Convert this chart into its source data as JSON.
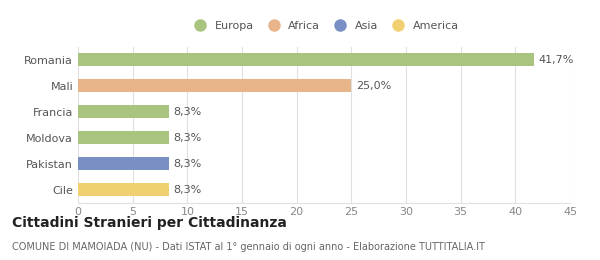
{
  "categories": [
    "Romania",
    "Mali",
    "Francia",
    "Moldova",
    "Pakistan",
    "Cile"
  ],
  "values": [
    41.7,
    25.0,
    8.3,
    8.3,
    8.3,
    8.3
  ],
  "bar_colors": [
    "#a8c47e",
    "#e8b48a",
    "#a8c47e",
    "#a8c47e",
    "#7a8fc4",
    "#f0d070"
  ],
  "labels": [
    "41,7%",
    "25,0%",
    "8,3%",
    "8,3%",
    "8,3%",
    "8,3%"
  ],
  "legend_entries": [
    {
      "label": "Europa",
      "color": "#a8c47e"
    },
    {
      "label": "Africa",
      "color": "#e8b48a"
    },
    {
      "label": "Asia",
      "color": "#7a8fc4"
    },
    {
      "label": "America",
      "color": "#f0d070"
    }
  ],
  "xlim": [
    0,
    45
  ],
  "xticks": [
    0,
    5,
    10,
    15,
    20,
    25,
    30,
    35,
    40,
    45
  ],
  "title": "Cittadini Stranieri per Cittadinanza",
  "subtitle": "COMUNE DI MAMOIADA (NU) - Dati ISTAT al 1° gennaio di ogni anno - Elaborazione TUTTITALIA.IT",
  "background_color": "#ffffff",
  "bar_height": 0.5,
  "label_fontsize": 8,
  "tick_fontsize": 8,
  "ytick_fontsize": 8,
  "title_fontsize": 10,
  "subtitle_fontsize": 7,
  "grid_color": "#e0e0e0"
}
